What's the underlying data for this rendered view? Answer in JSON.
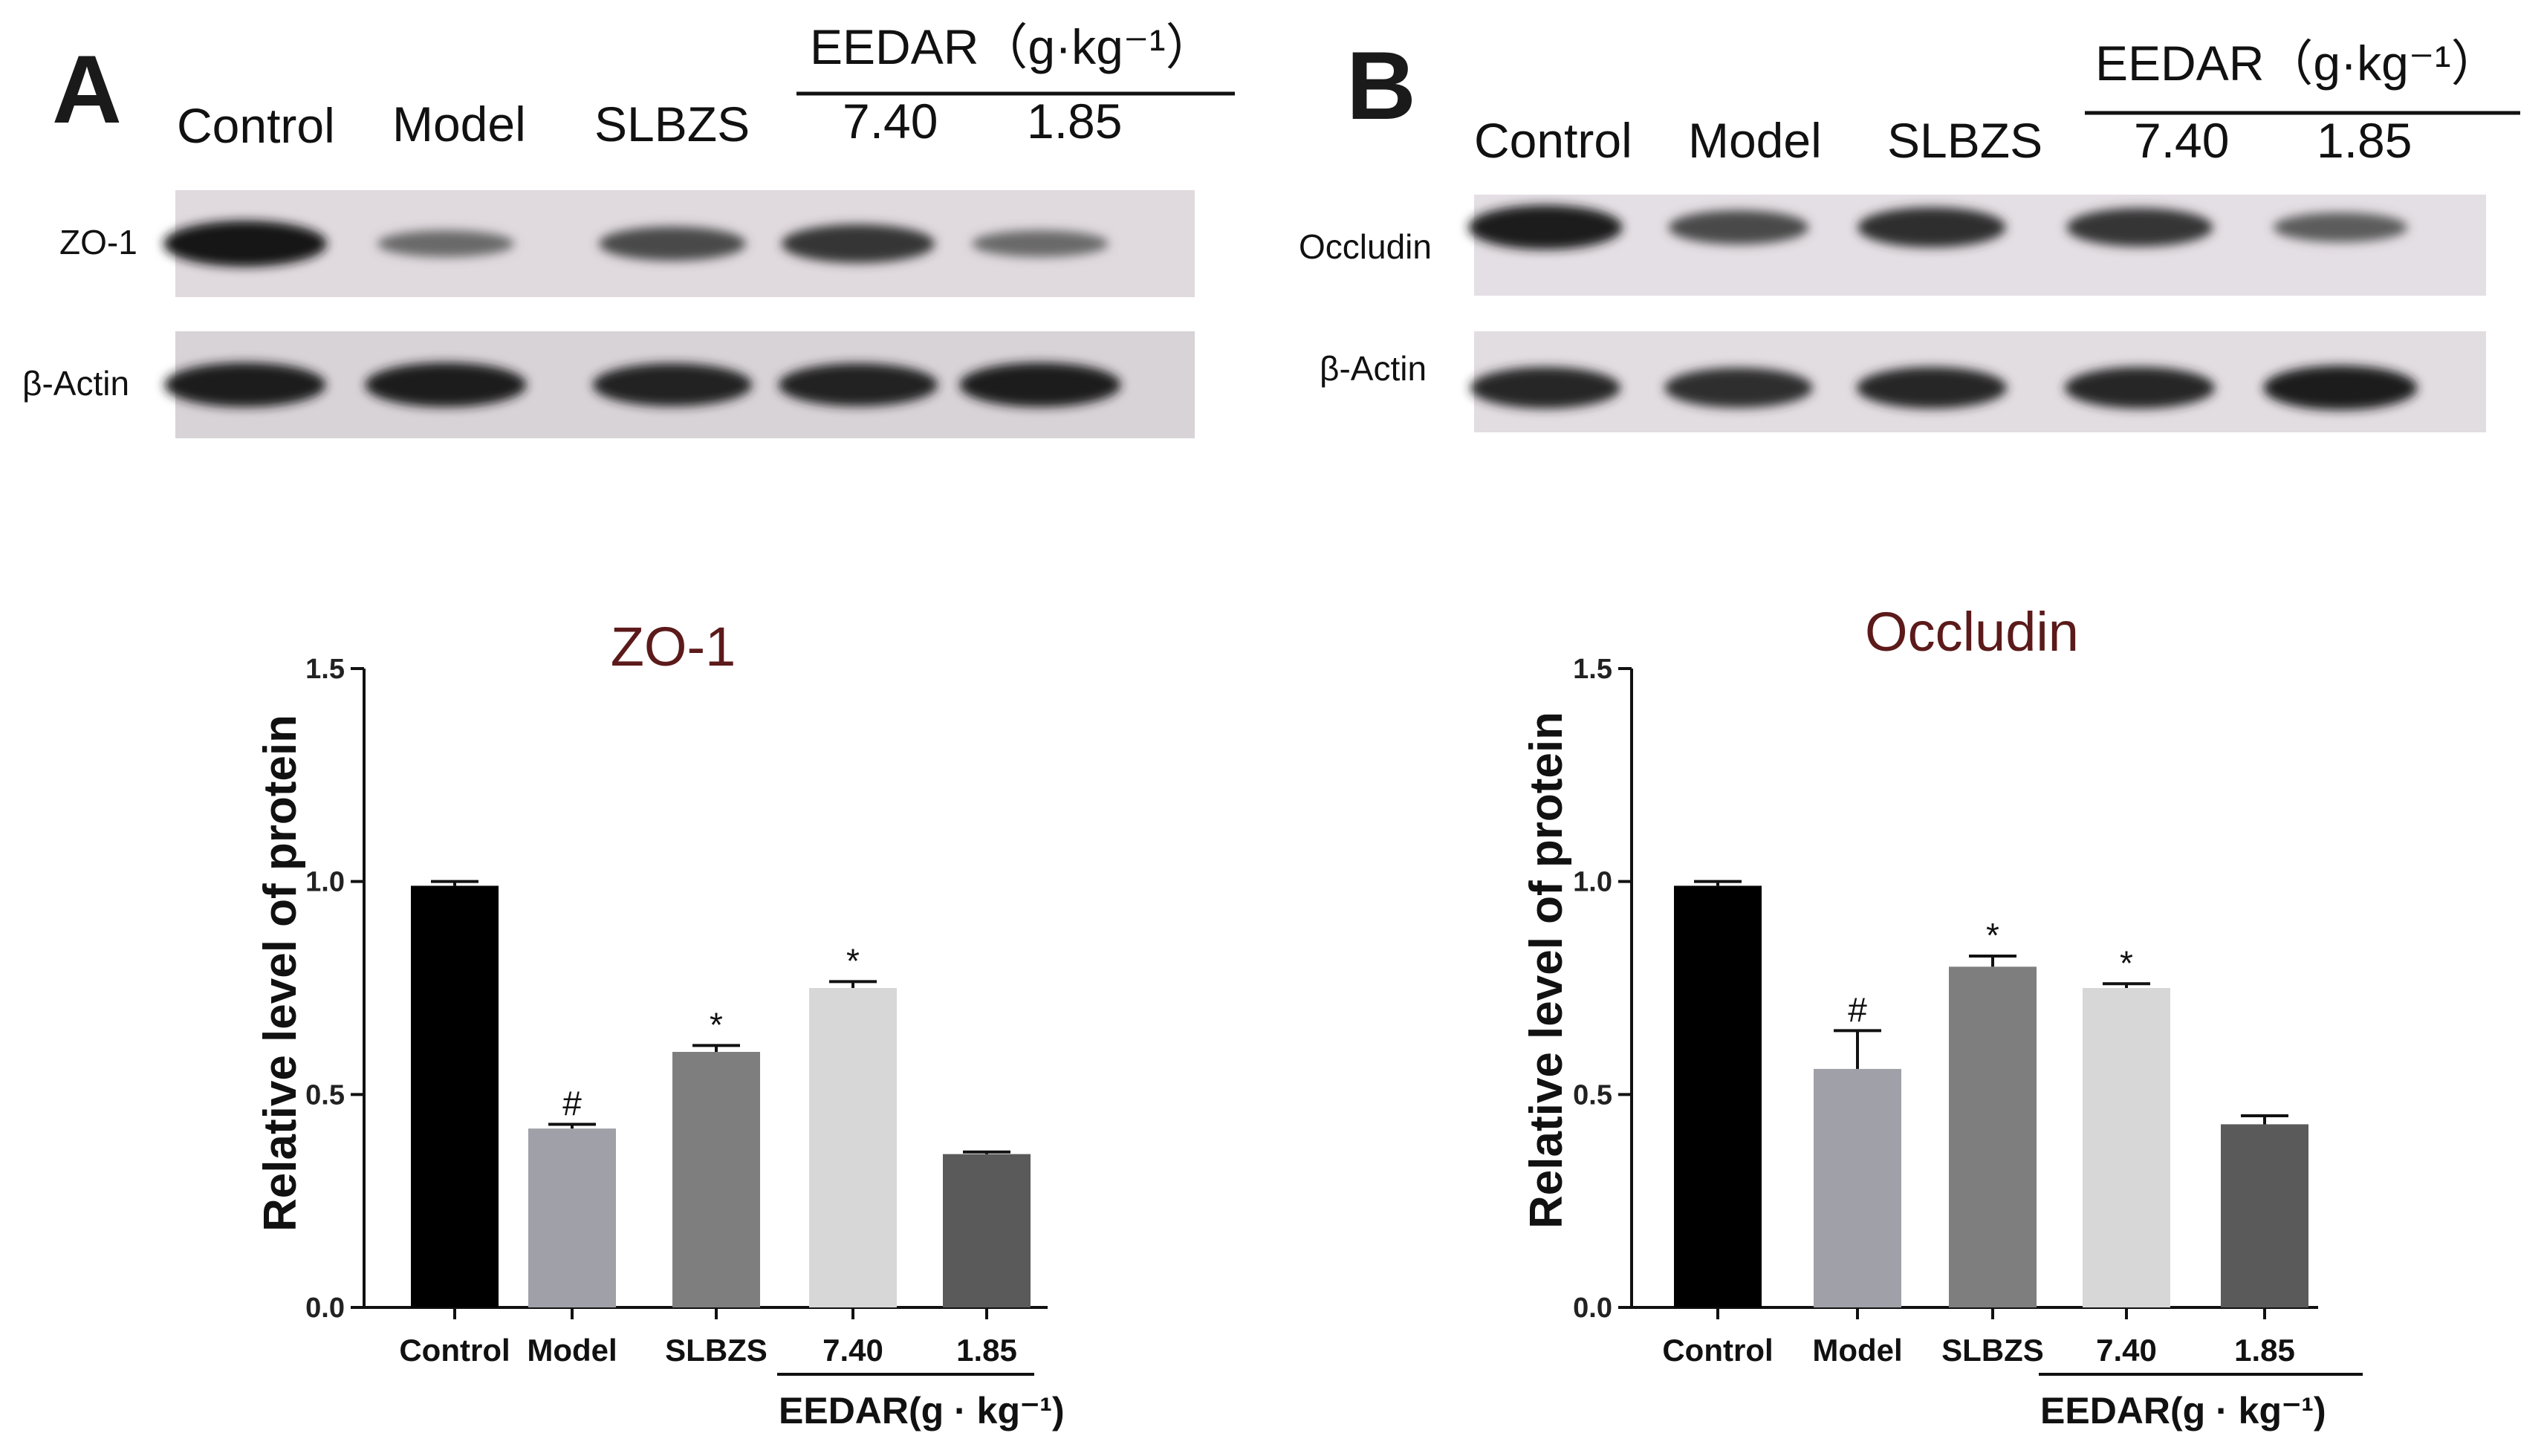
{
  "blots": [
    {
      "letter": "A",
      "lanes": [
        "Control",
        "Model",
        "SLBZS",
        "7.40",
        "1.85"
      ],
      "group_label": "EEDAR（g·kg⁻¹）",
      "rows": [
        "ZO-1",
        "β-Actin"
      ],
      "bands": [
        {
          "row": 0,
          "intensities": [
            1.0,
            0.35,
            0.6,
            0.75,
            0.35
          ]
        },
        {
          "row": 1,
          "intensities": [
            0.95,
            0.95,
            0.9,
            0.9,
            0.95
          ]
        }
      ]
    },
    {
      "letter": "B",
      "lanes": [
        "Control",
        "Model",
        "SLBZS",
        "7.40",
        "1.85"
      ],
      "group_label": "EEDAR（g·kg⁻¹）",
      "rows": [
        "Occludin",
        "β-Actin"
      ],
      "bands": [
        {
          "row": 0,
          "intensities": [
            0.95,
            0.6,
            0.8,
            0.75,
            0.45
          ]
        },
        {
          "row": 1,
          "intensities": [
            0.85,
            0.8,
            0.85,
            0.85,
            0.95
          ]
        }
      ]
    }
  ],
  "chart_data": [
    {
      "type": "bar",
      "title": "ZO-1",
      "ylabel": "Relative level of protein",
      "xlabel": "",
      "categories": [
        "Control",
        "Model",
        "SLBZS",
        "7.40",
        "1.85"
      ],
      "values": [
        0.99,
        0.42,
        0.6,
        0.75,
        0.36
      ],
      "errors": [
        0.01,
        0.01,
        0.015,
        0.015,
        0.005
      ],
      "annotations": [
        "",
        "#",
        "*",
        "*",
        ""
      ],
      "bar_colors": [
        "#000000",
        "#a0a0a8",
        "#7e7e7e",
        "#d7d7d7",
        "#5a5a5a"
      ],
      "ylim": [
        0,
        1.5
      ],
      "yticks": [
        "0.0",
        "0.5",
        "1.0",
        "1.5"
      ],
      "group_label": "EEDAR(g · kg⁻¹)",
      "grid": false,
      "legend": "none"
    },
    {
      "type": "bar",
      "title": "Occludin",
      "ylabel": "Relative level of protein",
      "xlabel": "",
      "categories": [
        "Control",
        "Model",
        "SLBZS",
        "7.40",
        "1.85"
      ],
      "values": [
        0.99,
        0.56,
        0.8,
        0.75,
        0.43
      ],
      "errors": [
        0.01,
        0.09,
        0.025,
        0.01,
        0.02
      ],
      "annotations": [
        "",
        "#",
        "*",
        "*",
        ""
      ],
      "bar_colors": [
        "#000000",
        "#a0a0a8",
        "#7e7e7e",
        "#d7d7d7",
        "#5a5a5a"
      ],
      "ylim": [
        0,
        1.5
      ],
      "yticks": [
        "0.0",
        "0.5",
        "1.0",
        "1.5"
      ],
      "group_label": "EEDAR(g · kg⁻¹)",
      "grid": false,
      "legend": "none"
    }
  ]
}
